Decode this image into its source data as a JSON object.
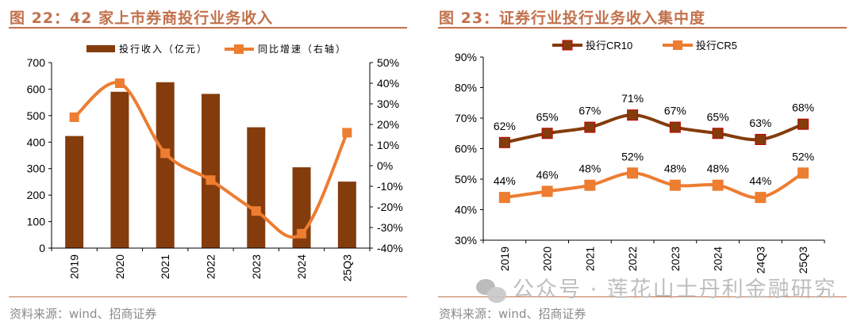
{
  "left": {
    "title": "图 22：42 家上市券商投行业务收入",
    "source": "资料来源：wind、招商证券"
  },
  "right": {
    "title": "图 23：证券行业投行业务收入集中度",
    "source": "资料来源：wind、招商证券"
  },
  "watermark": "公众号 · 莲花山士丹利金融研究",
  "colors": {
    "bar": "#843c0c",
    "growth": "#ed7d31",
    "cr10": "#843c0c",
    "cr10_marker_edge": "#c00000",
    "cr5": "#ed7d31",
    "title": "#c2714c"
  },
  "chart_data": [
    {
      "type": "bar+line",
      "categories": [
        "2019",
        "2020",
        "2021",
        "2022",
        "2023",
        "2024",
        "25Q3"
      ],
      "series": [
        {
          "name": "投行收入（亿元）",
          "type": "bar",
          "axis": "left",
          "values": [
            423,
            590,
            626,
            582,
            456,
            305,
            251
          ]
        },
        {
          "name": "同比增速（右轴）",
          "type": "line",
          "axis": "right",
          "marker": "square",
          "values": [
            23.5,
            40,
            6,
            -7,
            -22,
            -33,
            16
          ]
        }
      ],
      "ylim_left": [
        0,
        700
      ],
      "yticks_left": [
        "0",
        "100",
        "200",
        "300",
        "400",
        "500",
        "600",
        "700"
      ],
      "ylim_right": [
        -40,
        50
      ],
      "yticks_right": [
        "-40%",
        "-30%",
        "-20%",
        "-10%",
        "0%",
        "10%",
        "20%",
        "30%",
        "40%",
        "50%"
      ],
      "grid": false,
      "legend": "top"
    },
    {
      "type": "line",
      "categories": [
        "2019",
        "2020",
        "2021",
        "2022",
        "2023",
        "2024",
        "24Q3",
        "25Q3"
      ],
      "series": [
        {
          "name": "投行CR10",
          "values": [
            62,
            65,
            67,
            71,
            67,
            65,
            63,
            68
          ],
          "labels": [
            "62%",
            "65%",
            "67%",
            "71%",
            "67%",
            "65%",
            "63%",
            "68%"
          ]
        },
        {
          "name": "投行CR5",
          "values": [
            44,
            46,
            48,
            52,
            48,
            48,
            44,
            52
          ],
          "labels": [
            "44%",
            "46%",
            "48%",
            "52%",
            "48%",
            "48%",
            "44%",
            "52%"
          ]
        }
      ],
      "ylim": [
        30,
        90
      ],
      "yticks": [
        "30%",
        "40%",
        "50%",
        "60%",
        "70%",
        "80%",
        "90%"
      ],
      "grid": false,
      "legend": "top"
    }
  ]
}
